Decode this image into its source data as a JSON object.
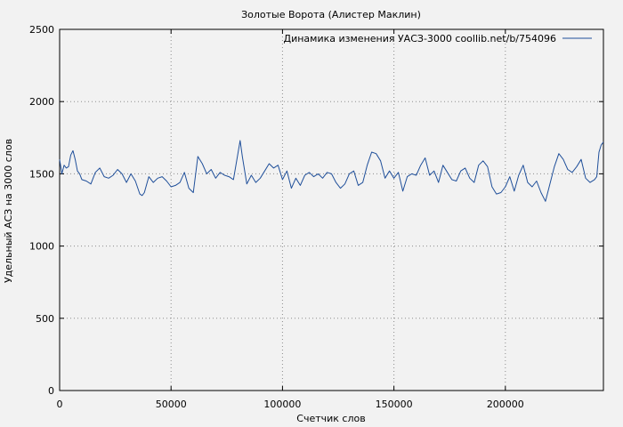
{
  "chart_data": {
    "type": "line",
    "title": "Золотые Ворота  (Алистер Маклин)",
    "xlabel": "Счетчик слов",
    "ylabel": "Удельный АСЗ на 3000 слов",
    "xlim": [
      0,
      244000
    ],
    "ylim": [
      0,
      2500
    ],
    "x_ticks": [
      0,
      50000,
      100000,
      150000,
      200000
    ],
    "y_ticks": [
      0,
      500,
      1000,
      1500,
      2000,
      2500
    ],
    "grid": true,
    "legend_position": "top-right",
    "series": [
      {
        "name": "Динамика изменения УАСЗ-3000 coollib.net/b/754096",
        "color": "#1f4f9a",
        "x": [
          0,
          1000,
          2000,
          3000,
          4000,
          5000,
          6000,
          7000,
          8000,
          9000,
          10000,
          12000,
          14000,
          16000,
          18000,
          20000,
          22000,
          24000,
          26000,
          28000,
          30000,
          32000,
          34000,
          36000,
          37000,
          38000,
          40000,
          42000,
          44000,
          46000,
          48000,
          50000,
          52000,
          54000,
          56000,
          58000,
          60000,
          62000,
          64000,
          66000,
          68000,
          70000,
          72000,
          74000,
          76000,
          78000,
          80000,
          81000,
          82000,
          84000,
          86000,
          88000,
          90000,
          92000,
          94000,
          96000,
          98000,
          100000,
          102000,
          104000,
          106000,
          108000,
          110000,
          112000,
          114000,
          116000,
          118000,
          120000,
          122000,
          124000,
          126000,
          128000,
          130000,
          132000,
          134000,
          136000,
          138000,
          140000,
          142000,
          144000,
          146000,
          148000,
          150000,
          152000,
          154000,
          156000,
          158000,
          160000,
          162000,
          164000,
          166000,
          168000,
          170000,
          172000,
          174000,
          176000,
          178000,
          180000,
          182000,
          184000,
          186000,
          188000,
          190000,
          192000,
          194000,
          196000,
          198000,
          200000,
          202000,
          204000,
          206000,
          208000,
          210000,
          212000,
          214000,
          216000,
          218000,
          220000,
          222000,
          224000,
          226000,
          228000,
          230000,
          232000,
          234000,
          236000,
          238000,
          240000,
          241000,
          242000,
          243000,
          244000
        ],
        "y": [
          1600,
          1500,
          1560,
          1540,
          1550,
          1630,
          1660,
          1600,
          1520,
          1500,
          1460,
          1450,
          1430,
          1510,
          1540,
          1480,
          1470,
          1490,
          1530,
          1500,
          1440,
          1500,
          1450,
          1360,
          1350,
          1370,
          1480,
          1440,
          1470,
          1480,
          1450,
          1410,
          1420,
          1440,
          1510,
          1400,
          1370,
          1620,
          1570,
          1500,
          1530,
          1470,
          1510,
          1490,
          1480,
          1460,
          1640,
          1730,
          1620,
          1430,
          1490,
          1440,
          1470,
          1520,
          1570,
          1540,
          1560,
          1460,
          1520,
          1400,
          1470,
          1420,
          1490,
          1510,
          1480,
          1500,
          1470,
          1510,
          1500,
          1440,
          1400,
          1430,
          1500,
          1520,
          1420,
          1440,
          1560,
          1650,
          1640,
          1590,
          1470,
          1520,
          1470,
          1510,
          1380,
          1480,
          1500,
          1490,
          1560,
          1610,
          1490,
          1520,
          1440,
          1560,
          1510,
          1460,
          1450,
          1520,
          1540,
          1470,
          1440,
          1560,
          1590,
          1550,
          1410,
          1360,
          1370,
          1410,
          1480,
          1380,
          1490,
          1560,
          1440,
          1410,
          1450,
          1370,
          1310,
          1430,
          1550,
          1640,
          1600,
          1530,
          1510,
          1550,
          1600,
          1470,
          1440,
          1460,
          1480,
          1650,
          1700,
          1720
        ]
      }
    ]
  }
}
